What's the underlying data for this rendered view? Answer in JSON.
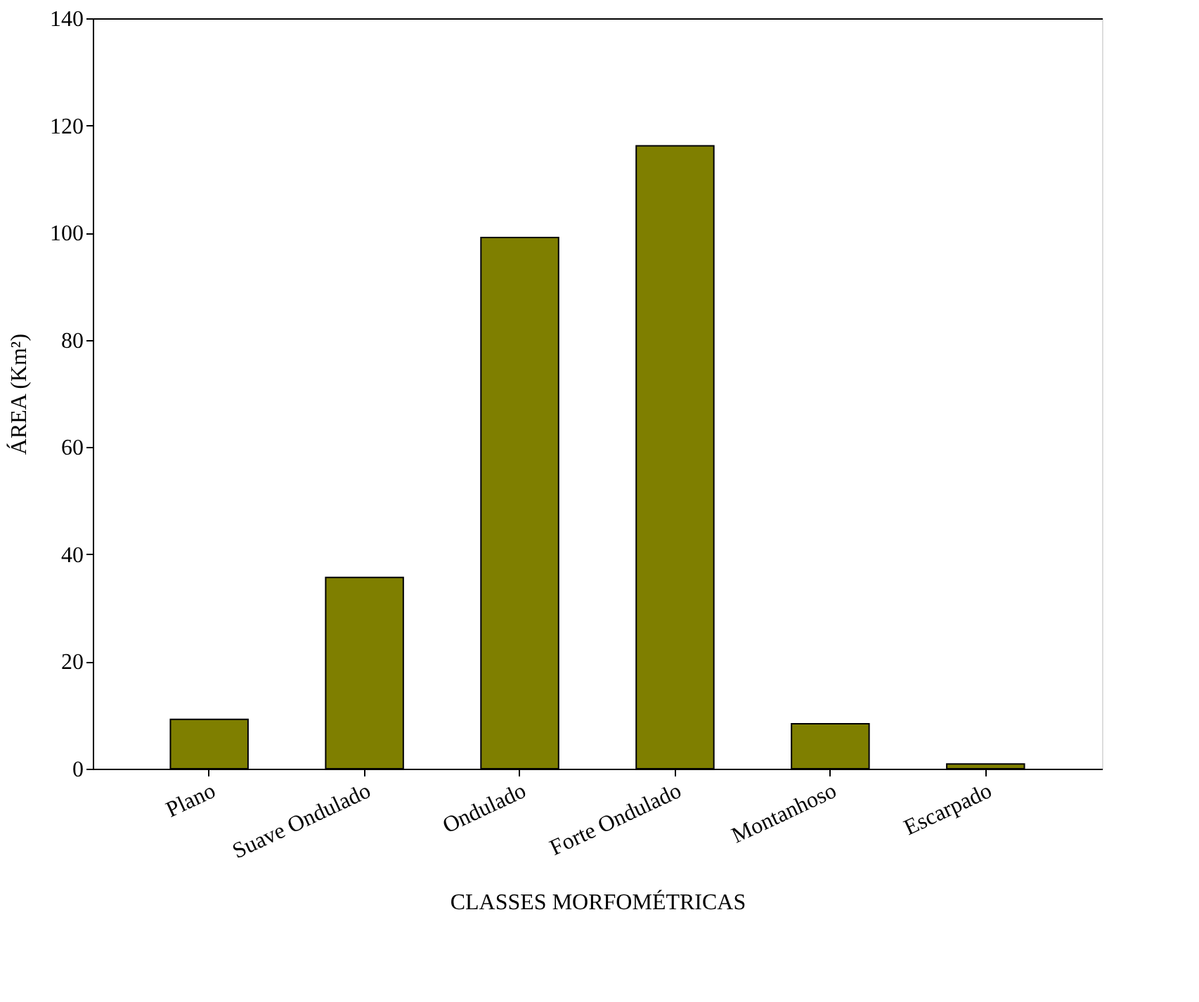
{
  "chart_data": {
    "type": "bar",
    "xlabel": "CLASSES MORFOMÉTRICAS",
    "ylabel": "ÁREA (Km²)",
    "categories": [
      "Plano",
      "Suave Ondulado",
      "Ondulado",
      "Forte Ondulado",
      "Montanhoso",
      "Escarpado"
    ],
    "values": [
      9.2,
      35.7,
      99.1,
      116.2,
      8.4,
      0.9
    ],
    "color": "#7f7f00",
    "ylim": [
      0,
      140
    ],
    "yticks": [
      0,
      20,
      40,
      60,
      80,
      100,
      120,
      140
    ],
    "grid": false
  }
}
